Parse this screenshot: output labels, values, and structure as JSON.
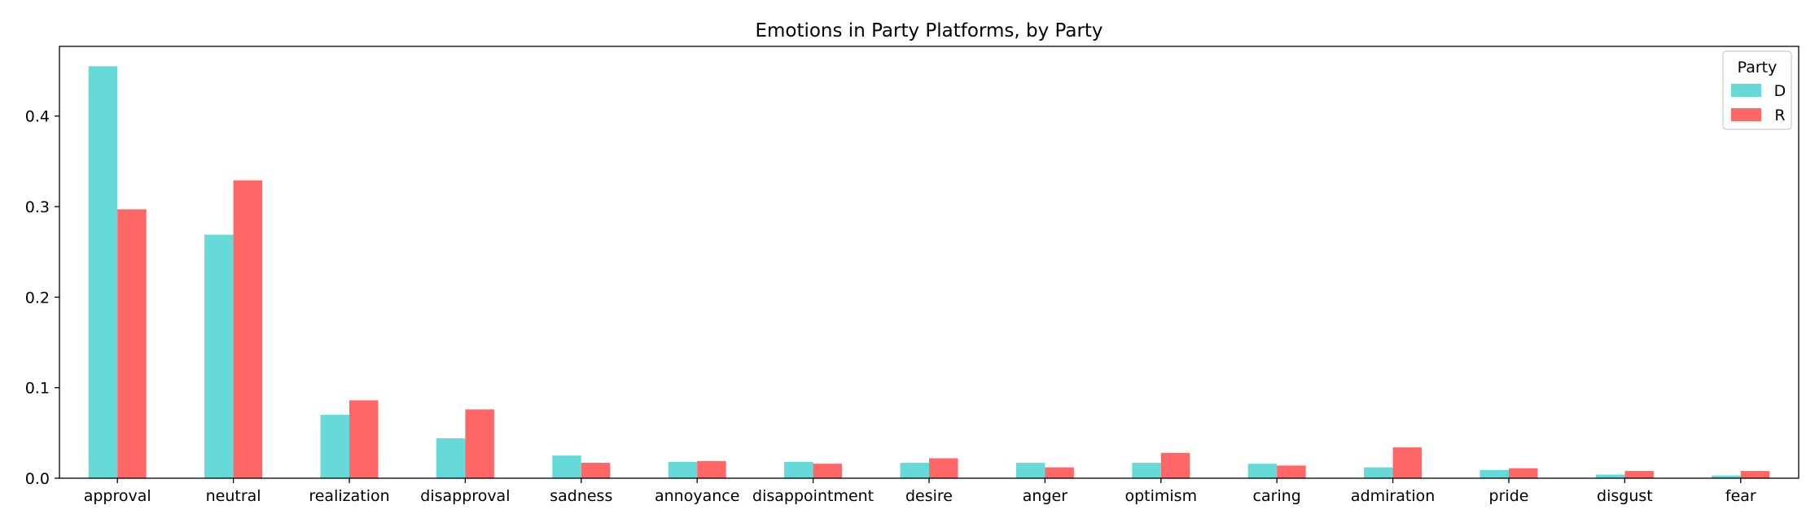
{
  "chart_data": {
    "type": "bar",
    "title": "Emotions in Party Platforms, by Party",
    "xlabel": "",
    "ylabel": "",
    "ylim": [
      0,
      0.477
    ],
    "yticks": [
      "0.0",
      "0.1",
      "0.2",
      "0.3",
      "0.4"
    ],
    "grid": false,
    "legend_position": "top-right",
    "legend_title": "Party",
    "categories": [
      "approval",
      "neutral",
      "realization",
      "disapproval",
      "sadness",
      "annoyance",
      "disappointment",
      "desire",
      "anger",
      "optimism",
      "caring",
      "admiration",
      "pride",
      "disgust",
      "fear"
    ],
    "series": [
      {
        "name": "D",
        "color": "#66d9d9",
        "values": [
          0.455,
          0.269,
          0.07,
          0.044,
          0.025,
          0.018,
          0.018,
          0.017,
          0.017,
          0.017,
          0.016,
          0.012,
          0.009,
          0.004,
          0.003
        ]
      },
      {
        "name": "R",
        "color": "#ff6666",
        "values": [
          0.297,
          0.329,
          0.086,
          0.076,
          0.017,
          0.019,
          0.016,
          0.022,
          0.012,
          0.028,
          0.014,
          0.034,
          0.011,
          0.008,
          0.008
        ]
      }
    ]
  }
}
